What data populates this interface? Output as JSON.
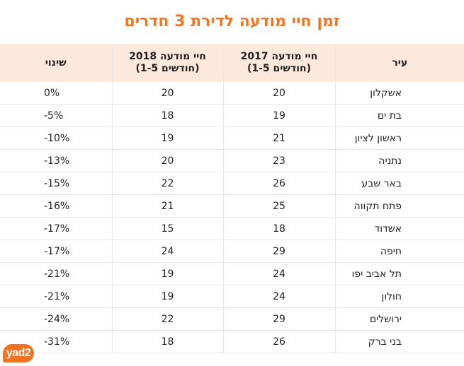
{
  "chart_data": {
    "type": "table",
    "title": "זמן חיי מודעה לדירת 3 חדרים",
    "columns": [
      {
        "line1": "עיר",
        "line2": ""
      },
      {
        "line1": "חיי מודעה 2017",
        "line2": "(חודשים 1-5)"
      },
      {
        "line1": "חיי מודעה 2018",
        "line2": "(חודשים 1-5)"
      },
      {
        "line1": "שינוי",
        "line2": ""
      }
    ],
    "rows": [
      {
        "city": "אשקלון",
        "y2017": "20",
        "y2018": "20",
        "change": "0%"
      },
      {
        "city": "בת ים",
        "y2017": "19",
        "y2018": "18",
        "change": "-5%"
      },
      {
        "city": "ראשון לציון",
        "y2017": "21",
        "y2018": "19",
        "change": "-10%"
      },
      {
        "city": "נתניה",
        "y2017": "23",
        "y2018": "20",
        "change": "-13%"
      },
      {
        "city": "באר שבע",
        "y2017": "26",
        "y2018": "22",
        "change": "-15%"
      },
      {
        "city": "פתח תקווה",
        "y2017": "25",
        "y2018": "21",
        "change": "-16%"
      },
      {
        "city": "אשדוד",
        "y2017": "18",
        "y2018": "15",
        "change": "-17%"
      },
      {
        "city": "חיפה",
        "y2017": "29",
        "y2018": "24",
        "change": "-17%"
      },
      {
        "city": "תל אביב יפו",
        "y2017": "24",
        "y2018": "19",
        "change": "-21%"
      },
      {
        "city": "חולון",
        "y2017": "24",
        "y2018": "19",
        "change": "-21%"
      },
      {
        "city": "ירושלים",
        "y2017": "29",
        "y2018": "22",
        "change": "-24%"
      },
      {
        "city": "בני ברק",
        "y2017": "26",
        "y2018": "18",
        "change": "-31%"
      }
    ]
  },
  "logo": {
    "text": "yad2"
  },
  "colors": {
    "accent": "#f47321",
    "header_bg": "#fde9db",
    "rule": "#e6e6e6"
  }
}
